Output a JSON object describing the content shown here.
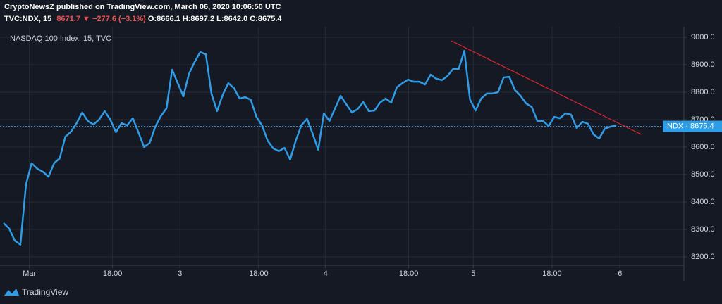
{
  "chart_data": {
    "type": "line",
    "publisher_line": "CryptoNewsZ published on TradingView.com, March 06, 2020 10:06:50 UTC",
    "legend": {
      "symbol": "TVC:NDX, 15",
      "last": "8671.7",
      "arrow": "▼",
      "change": "−277.6 (−3.1%)",
      "open": "O:8666.1",
      "high": "H:8697.2",
      "low": "L:8642.0",
      "close": "C:8675.4"
    },
    "title": "NASDAQ 100 Index, 15, TVC",
    "price_tag": "NDX · 8675.4",
    "last_price": 8675.4,
    "footer": "TradingView",
    "x": [
      0,
      1,
      2,
      3,
      4,
      5,
      6,
      7,
      8,
      9,
      10,
      11,
      12,
      13,
      14,
      15,
      16,
      17,
      18,
      19,
      20,
      21,
      22,
      23,
      24,
      25,
      26,
      27,
      28,
      29,
      30,
      31,
      32,
      33,
      34,
      35,
      36,
      37,
      38,
      39,
      40,
      41,
      42,
      43,
      44,
      45,
      46,
      47,
      48,
      49,
      50,
      51,
      52,
      53,
      54,
      55,
      56,
      57,
      58,
      59,
      60,
      61,
      62,
      63,
      64,
      65,
      66,
      67,
      68,
      69,
      70,
      71,
      72,
      73,
      74,
      75,
      76,
      77,
      78,
      79,
      80,
      81,
      82,
      83,
      84,
      85,
      86,
      87,
      88,
      89,
      90,
      91,
      92,
      93,
      94,
      95,
      96,
      97,
      98,
      99,
      100,
      101,
      102,
      103,
      104,
      105,
      106,
      107,
      108,
      109
    ],
    "series": [
      {
        "name": "NDX",
        "color": "#2f9ce6",
        "values": [
          8323,
          8303,
          8259,
          8244,
          8464,
          8541,
          8521,
          8510,
          8492,
          8541,
          8559,
          8638,
          8656,
          8687,
          8726,
          8695,
          8682,
          8700,
          8731,
          8700,
          8654,
          8687,
          8679,
          8705,
          8654,
          8600,
          8615,
          8674,
          8713,
          8741,
          8882,
          8833,
          8785,
          8867,
          8910,
          8946,
          8938,
          8795,
          8731,
          8790,
          8833,
          8815,
          8777,
          8782,
          8772,
          8710,
          8679,
          8623,
          8595,
          8585,
          8597,
          8554,
          8623,
          8679,
          8703,
          8649,
          8590,
          8723,
          8695,
          8741,
          8787,
          8756,
          8726,
          8738,
          8764,
          8731,
          8733,
          8762,
          8777,
          8762,
          8818,
          8833,
          8846,
          8838,
          8838,
          8828,
          8864,
          8849,
          8844,
          8859,
          8885,
          8885,
          8951,
          8774,
          8733,
          8777,
          8795,
          8795,
          8800,
          8854,
          8856,
          8808,
          8787,
          8759,
          8746,
          8695,
          8695,
          8677,
          8710,
          8705,
          8723,
          8718,
          8669,
          8692,
          8685,
          8646,
          8631,
          8667,
          8674,
          8679
        ]
      }
    ],
    "trendline": {
      "color": "#d7262b",
      "x": [
        79.7,
        113.5
      ],
      "values": [
        8987,
        8646
      ]
    },
    "xlim": [
      -0.63,
      121.08
    ],
    "xticks": [
      {
        "value": 4.6,
        "label": "Mar"
      },
      {
        "value": 19.4,
        "label": "18:00"
      },
      {
        "value": 31.4,
        "label": "3"
      },
      {
        "value": 45.4,
        "label": "18:00"
      },
      {
        "value": 57.3,
        "label": "4"
      },
      {
        "value": 72.1,
        "label": "18:00"
      },
      {
        "value": 83.6,
        "label": "5"
      },
      {
        "value": 97.6,
        "label": "18:00"
      },
      {
        "value": 109.7,
        "label": "6"
      }
    ],
    "ylim": [
      8169,
      9038.5
    ],
    "yticks": [
      {
        "value": 8200,
        "label": "8200.0"
      },
      {
        "value": 8300,
        "label": "8300.0"
      },
      {
        "value": 8400,
        "label": "8400.0"
      },
      {
        "value": 8500,
        "label": "8500.0"
      },
      {
        "value": 8600,
        "label": "8600.0"
      },
      {
        "value": 8700,
        "label": "8700.0"
      },
      {
        "value": 8800,
        "label": "8800.0"
      },
      {
        "value": 8900,
        "label": "8900.0"
      },
      {
        "value": 9000,
        "label": "9000.0"
      }
    ],
    "grid": true
  }
}
